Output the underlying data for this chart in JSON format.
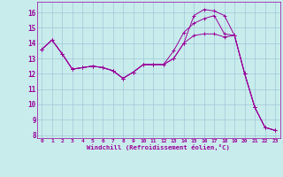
{
  "background_color": "#c8ecec",
  "grid_color": "#a0c8d8",
  "line_color": "#990099",
  "xlabel": "Windchill (Refroidissement éolien,°C)",
  "xlim": [
    -0.5,
    23.5
  ],
  "ylim": [
    7.8,
    16.7
  ],
  "yticks": [
    8,
    9,
    10,
    11,
    12,
    13,
    14,
    15,
    16
  ],
  "xticks": [
    0,
    1,
    2,
    3,
    4,
    5,
    6,
    7,
    8,
    9,
    10,
    11,
    12,
    13,
    14,
    15,
    16,
    17,
    18,
    19,
    20,
    21,
    22,
    23
  ],
  "series": [
    [
      13.6,
      14.2,
      13.3,
      12.3,
      12.4,
      12.5,
      12.4,
      12.2,
      11.7,
      12.1,
      12.6,
      12.6,
      12.6,
      13.0,
      14.0,
      15.8,
      16.2,
      16.1,
      15.8,
      14.5,
      12.0,
      9.8,
      8.5,
      8.3
    ],
    [
      13.6,
      14.2,
      13.3,
      12.3,
      12.4,
      12.5,
      12.4,
      12.2,
      11.7,
      12.1,
      12.6,
      12.6,
      12.6,
      13.5,
      14.7,
      15.3,
      15.6,
      15.8,
      14.6,
      14.5,
      12.0,
      9.8,
      8.5,
      8.3
    ],
    [
      13.6,
      14.2,
      13.3,
      12.3,
      12.4,
      12.5,
      12.4,
      12.2,
      11.7,
      12.1,
      12.6,
      12.6,
      12.6,
      13.0,
      14.0,
      14.5,
      14.6,
      14.6,
      14.4,
      14.5,
      12.0,
      9.8,
      8.5,
      8.3
    ]
  ]
}
